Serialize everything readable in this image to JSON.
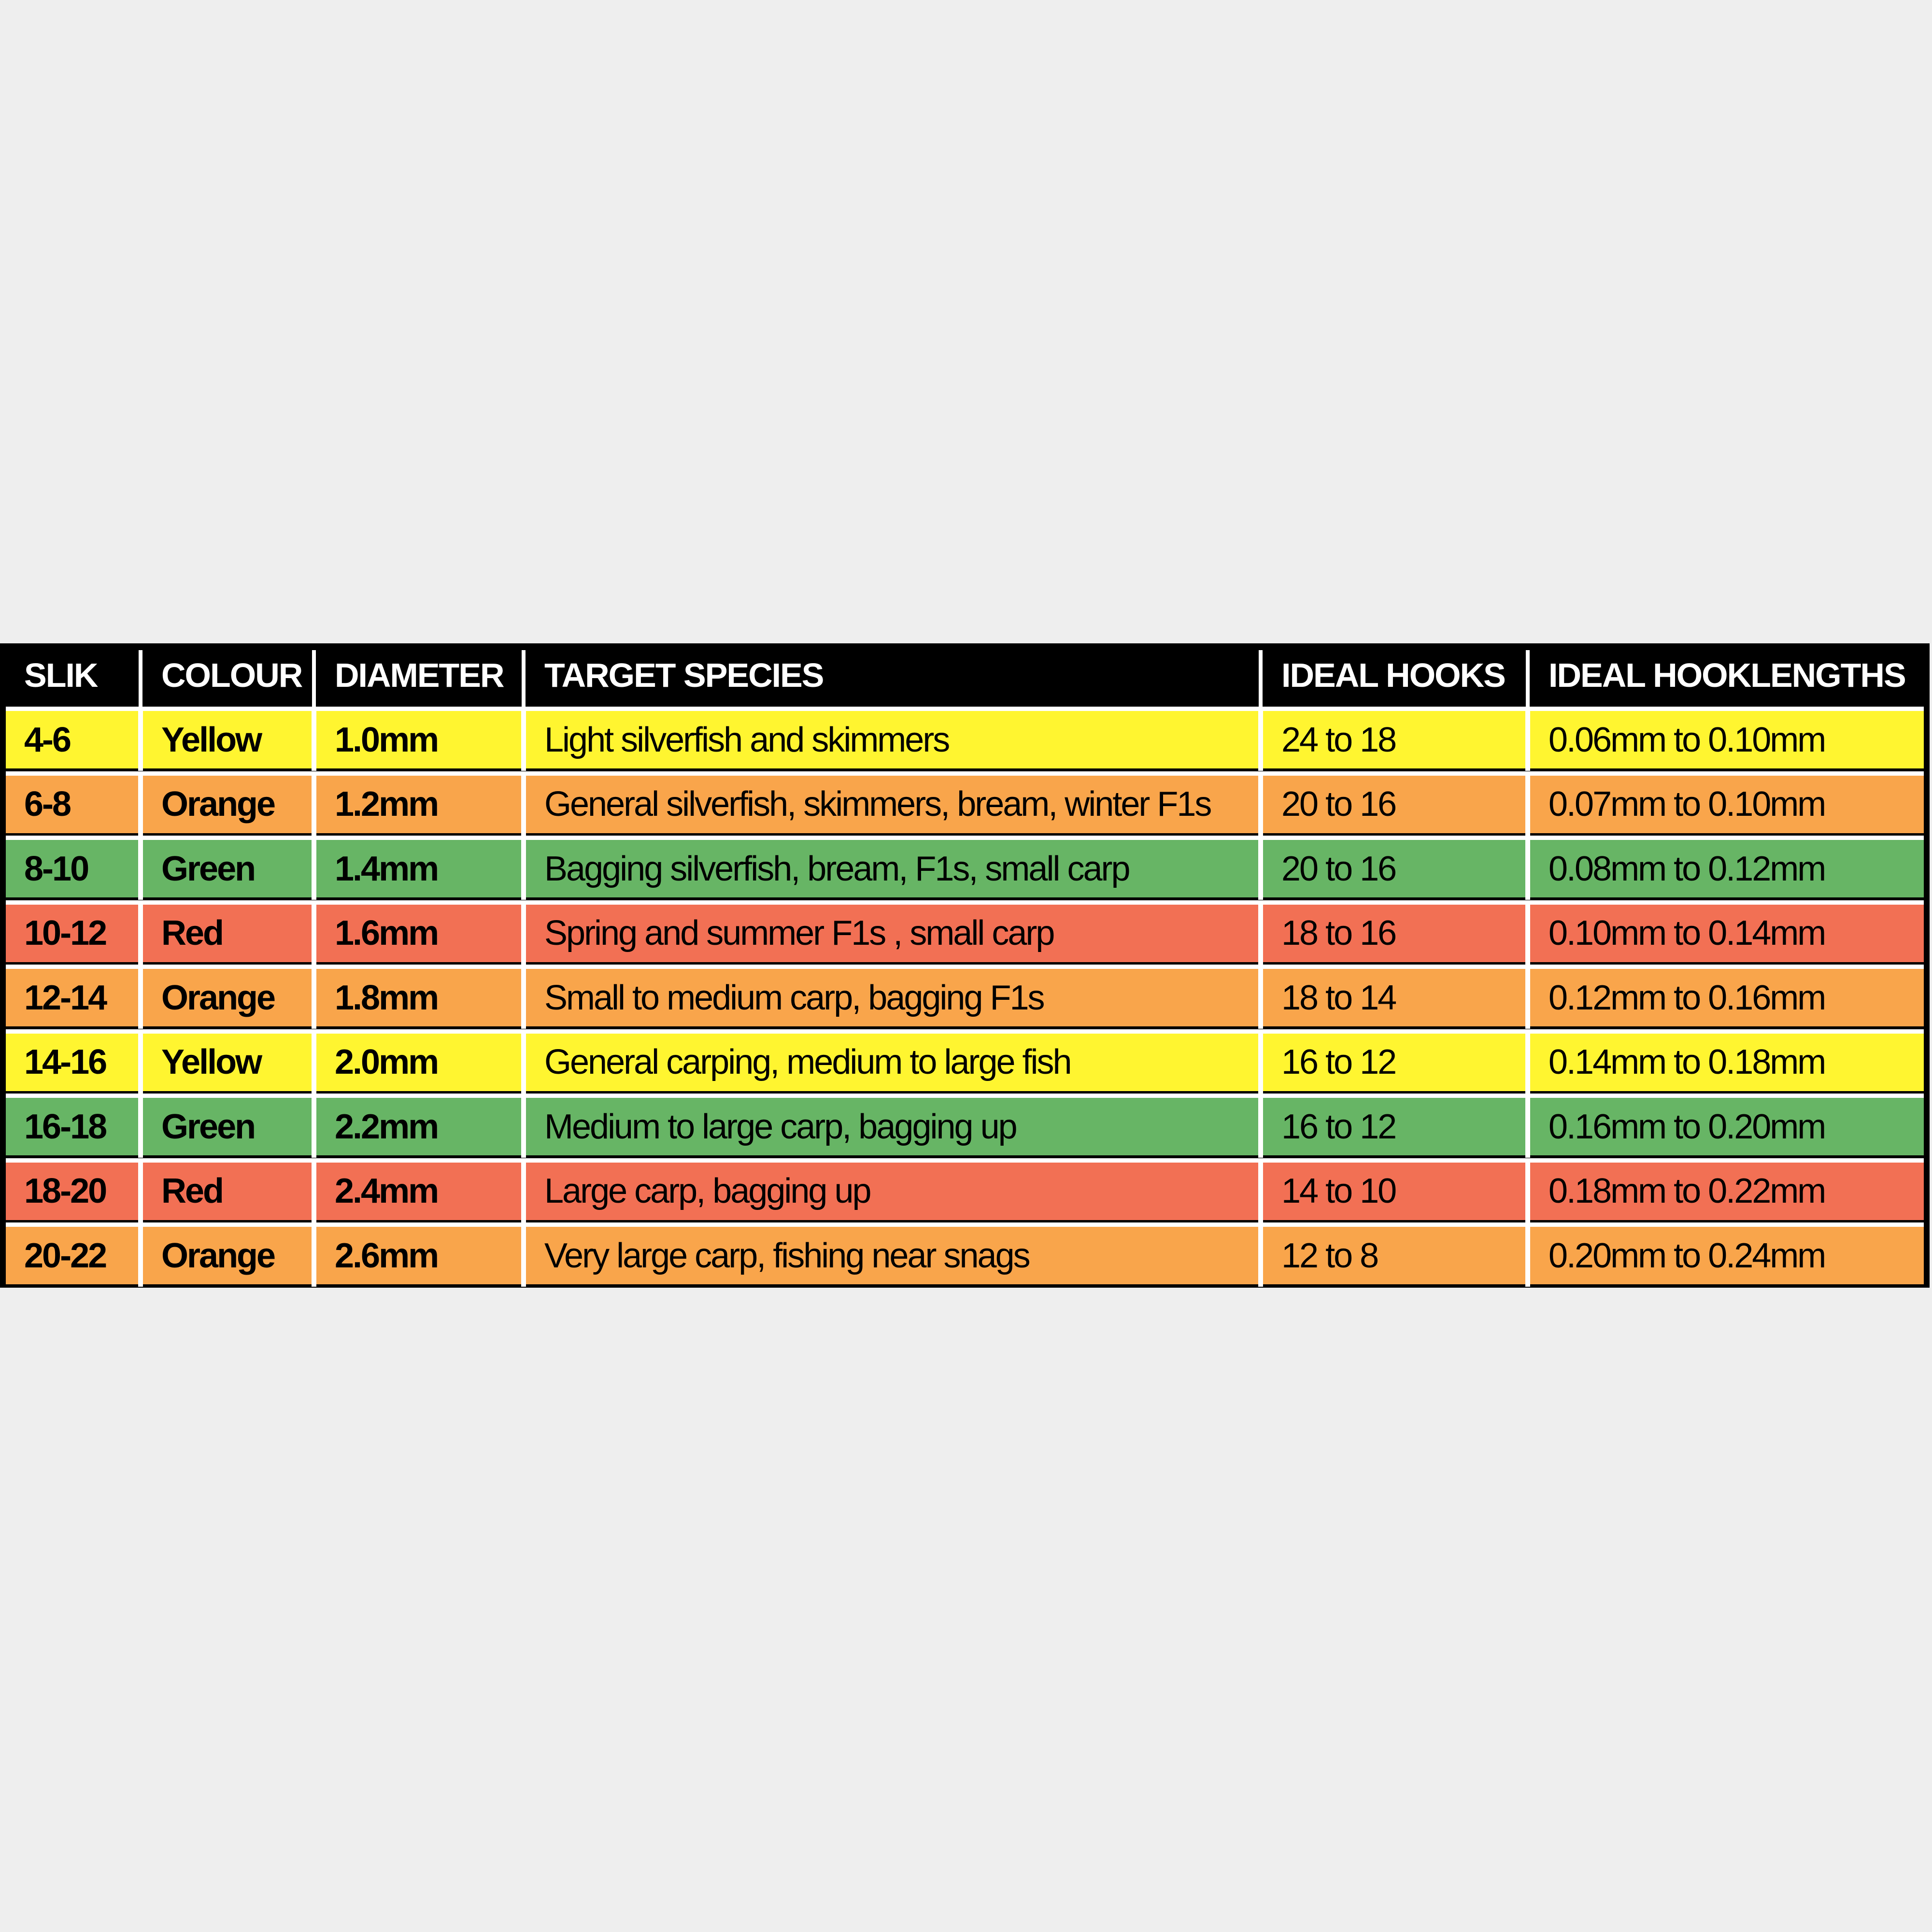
{
  "table": {
    "headers": [
      "SLIK",
      "COLOUR",
      "DIAMETER",
      "TARGET SPECIES",
      "IDEAL HOOKS",
      "IDEAL HOOKLENGTHS"
    ],
    "colors": {
      "Yellow": "#fff530",
      "Orange": "#f9a54b",
      "Green": "#67b565",
      "Red": "#f27054"
    },
    "rows": [
      [
        "4-6",
        "Yellow",
        "1.0mm",
        "Light silverfish and skimmers",
        "24 to 18",
        "0.06mm to 0.10mm"
      ],
      [
        "6-8",
        "Orange",
        "1.2mm",
        "General silverfish, skimmers, bream, winter F1s",
        "20 to 16",
        "0.07mm to 0.10mm"
      ],
      [
        "8-10",
        "Green",
        "1.4mm",
        "Bagging silverfish, bream, F1s, small carp",
        "20 to 16",
        "0.08mm to 0.12mm"
      ],
      [
        "10-12",
        "Red",
        "1.6mm",
        "Spring and summer F1s , small carp",
        "18 to 16",
        "0.10mm to 0.14mm"
      ],
      [
        "12-14",
        "Orange",
        "1.8mm",
        "Small to medium carp, bagging F1s",
        "18 to 14",
        "0.12mm to 0.16mm"
      ],
      [
        "14-16",
        "Yellow",
        "2.0mm",
        "General carping, medium to large fish",
        "16 to 12",
        "0.14mm to 0.18mm"
      ],
      [
        "16-18",
        "Green",
        "2.2mm",
        "Medium to large carp, bagging up",
        "16 to 12",
        "0.16mm to 0.20mm"
      ],
      [
        "18-20",
        "Red",
        "2.4mm",
        "Large carp, bagging up",
        "14 to 10",
        "0.18mm to 0.22mm"
      ],
      [
        "20-22",
        "Orange",
        "2.6mm",
        "Very large carp, fishing near snags",
        "12 to 8",
        "0.20mm to 0.24mm"
      ]
    ]
  }
}
